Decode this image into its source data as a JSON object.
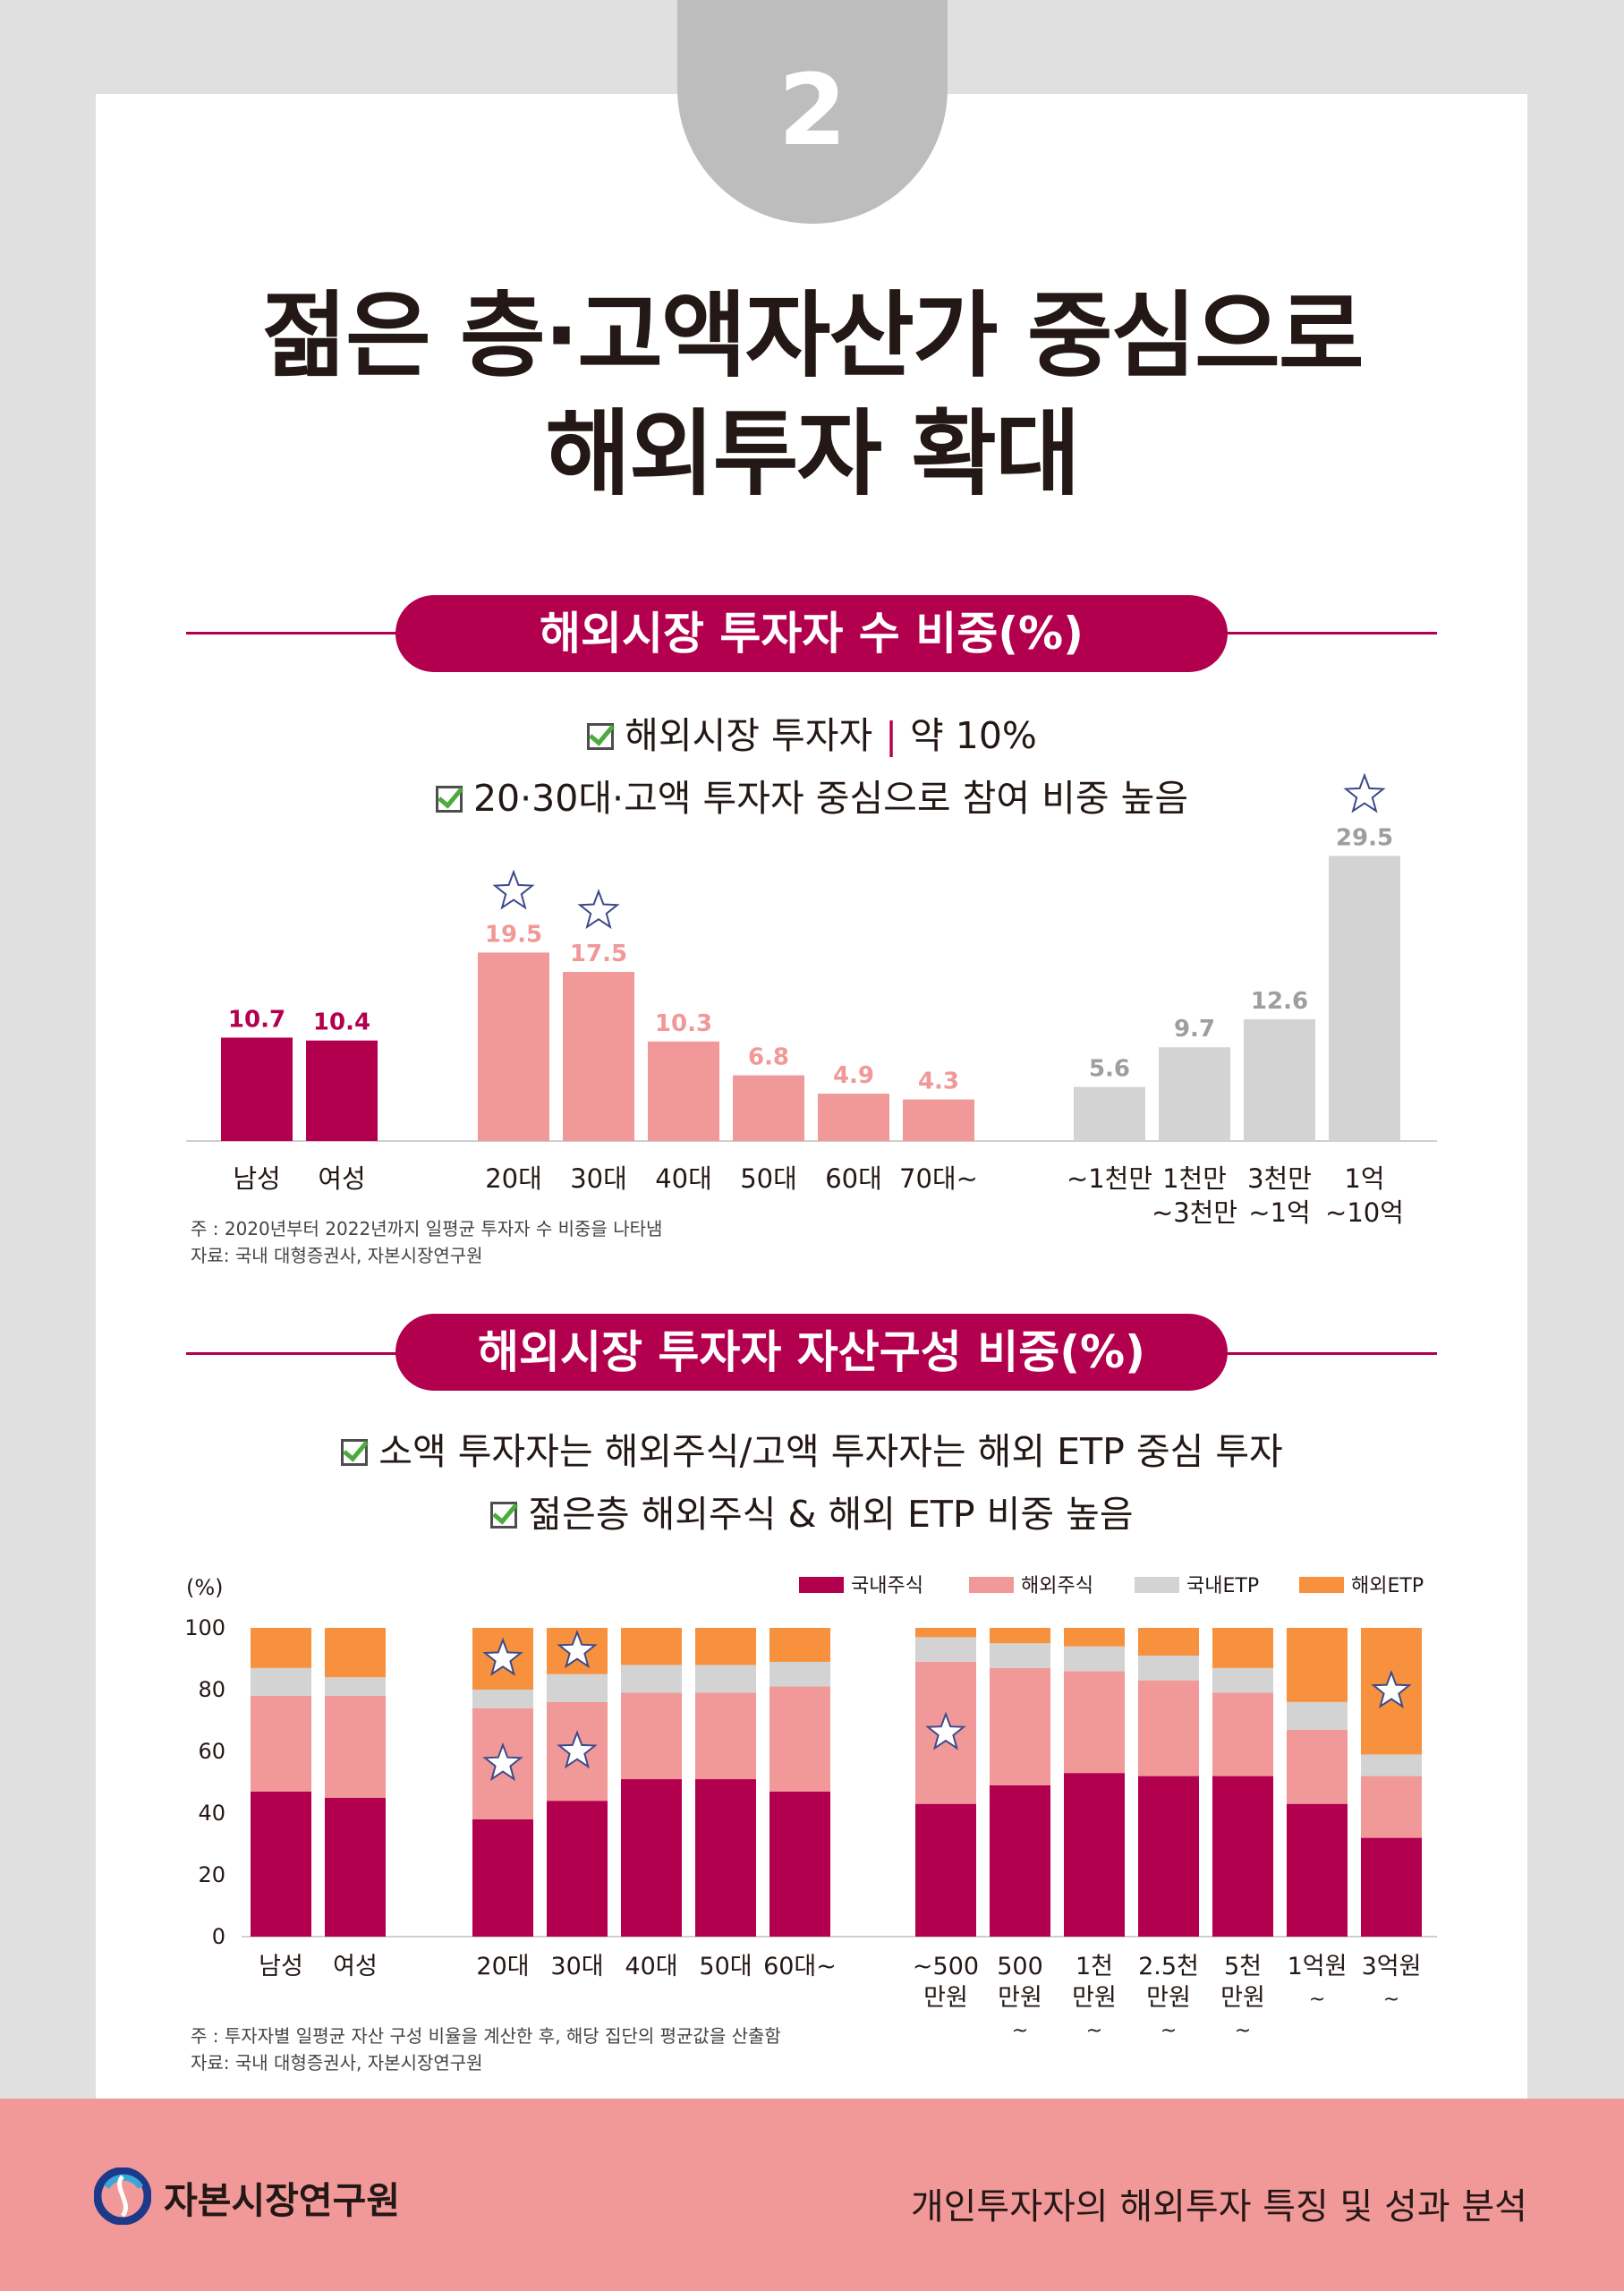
{
  "page": {
    "section_number": "2",
    "title_line1": "젊은 층·고액자산가 중심으로",
    "title_line2": "해외투자 확대"
  },
  "section1": {
    "header": "해외시장 투자자 수 비중(%)",
    "note1_label": "해외시장 투자자",
    "note1_sep": "|",
    "note1_value": "약 10%",
    "note2": "20·30대·고액 투자자 중심으로 참여 비중 높음",
    "footnote1": "주   : 2020년부터 2022년까지 일평균 투자자 수 비중을 나타냄",
    "footnote2": "자료: 국내 대형증권사, 자본시장연구원"
  },
  "section2": {
    "header": "해외시장 투자자 자산구성 비중(%)",
    "note1": "소액 투자자는 해외주식/고액 투자자는 해외 ETP 중심 투자",
    "note2": "젊은층 해외주식 & 해외 ETP 비중 높음",
    "footnote1": "주   : 투자자별 일평균 자산 구성 비율을 계산한 후, 해당 집단의 평균값을 산출함",
    "footnote2": "자료: 국내 대형증권사, 자본시장연구원"
  },
  "footer": {
    "org": "자본시장연구원",
    "report": "개인투자자의 해외투자 특징 및 성과 분석"
  },
  "icons": {
    "check": "checkbox-checked-icon",
    "star": "star-outline-icon",
    "logo": "kcmi-logo-icon"
  },
  "colors": {
    "magenta": "#b3004e",
    "pink": "#f19898",
    "gray": "#d3d3d3",
    "orange": "#f7913d",
    "tab_gray": "#bdbdbd"
  },
  "chart_data": [
    {
      "type": "bar",
      "title": "해외시장 투자자 수 비중(%)",
      "groups": [
        {
          "name": "gender",
          "color": "#b3004e",
          "labelColor": "#b3004e",
          "categories": [
            [
              "남성"
            ],
            [
              "여성"
            ]
          ],
          "values": [
            10.7,
            10.4
          ],
          "starred": [
            false,
            false
          ]
        },
        {
          "name": "age",
          "color": "#f19898",
          "labelColor": "#f19898",
          "categories": [
            [
              "20대"
            ],
            [
              "30대"
            ],
            [
              "40대"
            ],
            [
              "50대"
            ],
            [
              "60대"
            ],
            [
              "70대~"
            ]
          ],
          "values": [
            19.5,
            17.5,
            10.3,
            6.8,
            4.9,
            4.3
          ],
          "starred": [
            true,
            true,
            false,
            false,
            false,
            false
          ]
        },
        {
          "name": "assets",
          "color": "#d3d3d3",
          "labelColor": "#9e9e9e",
          "categories": [
            [
              "~1천만"
            ],
            [
              "1천만",
              "~3천만"
            ],
            [
              "3천만",
              "~1억"
            ],
            [
              "1억",
              "~10억"
            ]
          ],
          "values": [
            5.6,
            9.7,
            12.6,
            29.5
          ],
          "starred": [
            false,
            false,
            false,
            true
          ]
        }
      ],
      "ylim": [
        0,
        30
      ],
      "xlabel": "",
      "ylabel": ""
    },
    {
      "type": "stacked-bar",
      "title": "해외시장 투자자 자산구성 비중(%)",
      "ylabel": "(%)",
      "yticks": [
        0,
        20,
        40,
        60,
        80,
        100
      ],
      "ylim": [
        0,
        100
      ],
      "legend_position": "top-right",
      "series": [
        {
          "name": "국내주식",
          "color": "#b3004e"
        },
        {
          "name": "해외주식",
          "color": "#f19898"
        },
        {
          "name": "국내ETP",
          "color": "#d3d3d3"
        },
        {
          "name": "해외ETP",
          "color": "#f7913d"
        }
      ],
      "groups": [
        {
          "name": "gender",
          "bars": [
            {
              "label": [
                "남성"
              ],
              "values": [
                47,
                31,
                9,
                13
              ]
            },
            {
              "label": [
                "여성"
              ],
              "values": [
                45,
                33,
                6,
                16
              ]
            }
          ]
        },
        {
          "name": "age",
          "bars": [
            {
              "label": [
                "20대"
              ],
              "values": [
                38,
                36,
                6,
                20
              ],
              "stars": [
                1,
                3
              ]
            },
            {
              "label": [
                "30대"
              ],
              "values": [
                44,
                32,
                9,
                15
              ],
              "stars": [
                1,
                3
              ]
            },
            {
              "label": [
                "40대"
              ],
              "values": [
                51,
                28,
                9,
                12
              ]
            },
            {
              "label": [
                "50대"
              ],
              "values": [
                51,
                28,
                9,
                12
              ]
            },
            {
              "label": [
                "60대~"
              ],
              "values": [
                47,
                34,
                8,
                11
              ]
            }
          ]
        },
        {
          "name": "assets",
          "bars": [
            {
              "label": [
                "~500",
                "만원"
              ],
              "values": [
                43,
                46,
                8,
                3
              ],
              "stars": [
                1
              ]
            },
            {
              "label": [
                "500",
                "만원",
                "~"
              ],
              "values": [
                49,
                38,
                8,
                5
              ]
            },
            {
              "label": [
                "1천",
                "만원",
                "~"
              ],
              "values": [
                53,
                33,
                8,
                6
              ]
            },
            {
              "label": [
                "2.5천",
                "만원",
                "~"
              ],
              "values": [
                52,
                31,
                8,
                9
              ]
            },
            {
              "label": [
                "5천",
                "만원",
                "~"
              ],
              "values": [
                52,
                27,
                8,
                13
              ]
            },
            {
              "label": [
                "1억원",
                "~"
              ],
              "values": [
                43,
                24,
                9,
                24
              ]
            },
            {
              "label": [
                "3억원",
                "~"
              ],
              "values": [
                32,
                20,
                7,
                41
              ],
              "stars": [
                3
              ]
            }
          ]
        }
      ]
    }
  ]
}
